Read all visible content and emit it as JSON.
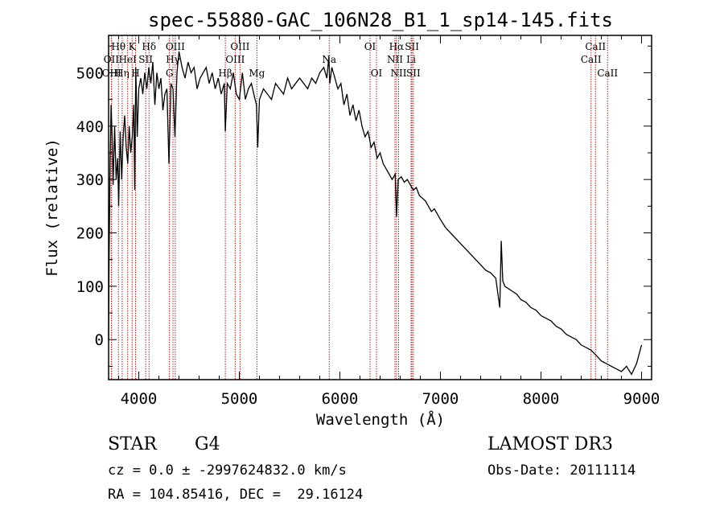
{
  "chart_data": {
    "type": "line",
    "title": "spec-55880-GAC_106N28_B1_1_sp14-145.fits",
    "xlabel": "Wavelength (Å)",
    "ylabel": "Flux (relative)",
    "xlim": [
      3700,
      9100
    ],
    "ylim": [
      -75,
      570
    ],
    "x_ticks": [
      4000,
      5000,
      6000,
      7000,
      8000,
      9000
    ],
    "y_ticks": [
      0,
      100,
      200,
      300,
      400,
      500
    ],
    "series": [
      {
        "name": "flux",
        "color": "#000000",
        "x": [
          3700,
          3705,
          3715,
          3725,
          3735,
          3745,
          3760,
          3775,
          3790,
          3800,
          3815,
          3830,
          3845,
          3860,
          3875,
          3890,
          3905,
          3920,
          3935,
          3950,
          3960,
          3970,
          3985,
          4000,
          4020,
          4040,
          4060,
          4080,
          4100,
          4120,
          4140,
          4160,
          4180,
          4200,
          4220,
          4240,
          4260,
          4280,
          4300,
          4320,
          4340,
          4360,
          4380,
          4400,
          4430,
          4460,
          4490,
          4520,
          4550,
          4580,
          4610,
          4640,
          4670,
          4700,
          4730,
          4760,
          4790,
          4820,
          4850,
          4861,
          4880,
          4910,
          4940,
          4970,
          5000,
          5030,
          5060,
          5090,
          5120,
          5150,
          5170,
          5183,
          5200,
          5240,
          5280,
          5320,
          5360,
          5400,
          5440,
          5480,
          5520,
          5560,
          5600,
          5640,
          5680,
          5720,
          5760,
          5800,
          5840,
          5870,
          5890,
          5900,
          5920,
          5950,
          5980,
          6010,
          6040,
          6070,
          6100,
          6130,
          6160,
          6190,
          6220,
          6250,
          6280,
          6310,
          6340,
          6370,
          6400,
          6430,
          6460,
          6490,
          6520,
          6550,
          6563,
          6580,
          6610,
          6640,
          6670,
          6700,
          6730,
          6760,
          6790,
          6820,
          6850,
          6880,
          6910,
          6940,
          6970,
          7000,
          7050,
          7100,
          7150,
          7200,
          7250,
          7300,
          7350,
          7400,
          7450,
          7500,
          7550,
          7590,
          7605,
          7620,
          7640,
          7680,
          7720,
          7760,
          7800,
          7850,
          7900,
          7950,
          8000,
          8050,
          8100,
          8150,
          8200,
          8250,
          8300,
          8350,
          8400,
          8450,
          8500,
          8550,
          8600,
          8650,
          8700,
          8750,
          8800,
          8850,
          8900,
          8950,
          9000
        ],
        "y": [
          0,
          150,
          330,
          440,
          380,
          290,
          400,
          300,
          340,
          250,
          390,
          300,
          380,
          420,
          360,
          330,
          400,
          350,
          380,
          440,
          280,
          510,
          380,
          470,
          490,
          460,
          500,
          470,
          510,
          480,
          520,
          440,
          500,
          470,
          490,
          430,
          460,
          470,
          330,
          480,
          470,
          380,
          500,
          540,
          510,
          490,
          520,
          500,
          510,
          470,
          490,
          500,
          510,
          480,
          500,
          470,
          490,
          460,
          480,
          390,
          480,
          470,
          500,
          460,
          450,
          500,
          450,
          470,
          480,
          455,
          440,
          360,
          450,
          470,
          460,
          450,
          480,
          470,
          460,
          490,
          470,
          480,
          490,
          480,
          470,
          490,
          480,
          500,
          510,
          490,
          530,
          480,
          510,
          490,
          470,
          480,
          440,
          460,
          420,
          440,
          410,
          430,
          400,
          380,
          390,
          360,
          370,
          340,
          350,
          330,
          320,
          310,
          300,
          310,
          230,
          300,
          305,
          295,
          300,
          290,
          280,
          285,
          270,
          265,
          260,
          250,
          240,
          245,
          235,
          225,
          210,
          200,
          190,
          180,
          170,
          160,
          150,
          140,
          130,
          125,
          115,
          60,
          185,
          110,
          100,
          95,
          90,
          85,
          75,
          70,
          60,
          55,
          45,
          40,
          35,
          25,
          20,
          10,
          5,
          0,
          -10,
          -15,
          -20,
          -30,
          -40,
          -45,
          -50,
          -55,
          -60,
          -50,
          -65,
          -45,
          -10
        ]
      }
    ],
    "spectral_lines": [
      {
        "name": "Hθ",
        "x": 3798,
        "row": 0
      },
      {
        "name": "OII",
        "x": 3727,
        "row": 1
      },
      {
        "name": "OIII",
        "x": 3730,
        "row": 2
      },
      {
        "name": "Hη",
        "x": 3835,
        "row": 2
      },
      {
        "name": "HeI",
        "x": 3889,
        "row": 1
      },
      {
        "name": "K",
        "x": 3934,
        "row": 0
      },
      {
        "name": "H",
        "x": 3968,
        "row": 2
      },
      {
        "name": "SII",
        "x": 4069,
        "row": 1
      },
      {
        "name": "Hδ",
        "x": 4102,
        "row": 0
      },
      {
        "name": "OIII",
        "x": 4363,
        "row": 0
      },
      {
        "name": "Hγ",
        "x": 4340,
        "row": 1
      },
      {
        "name": "G",
        "x": 4305,
        "row": 2
      },
      {
        "name": "OIII",
        "x": 5007,
        "row": 0
      },
      {
        "name": "OIII",
        "x": 4959,
        "row": 1
      },
      {
        "name": "Hβ",
        "x": 4861,
        "row": 2
      },
      {
        "name": "Mg",
        "x": 5175,
        "row": 2
      },
      {
        "name": "Na",
        "x": 5894,
        "row": 1
      },
      {
        "name": "OI",
        "x": 6300,
        "row": 0
      },
      {
        "name": "OI",
        "x": 6364,
        "row": 2
      },
      {
        "name": "Hα",
        "x": 6563,
        "row": 0
      },
      {
        "name": "NII",
        "x": 6548,
        "row": 1
      },
      {
        "name": "NII",
        "x": 6584,
        "row": 2
      },
      {
        "name": "SII",
        "x": 6717,
        "row": 0
      },
      {
        "name": "Li",
        "x": 6708,
        "row": 1
      },
      {
        "name": "SII",
        "x": 6731,
        "row": 2
      },
      {
        "name": "CaII",
        "x": 8542,
        "row": 0
      },
      {
        "name": "CaII",
        "x": 8498,
        "row": 1
      },
      {
        "name": "CaII",
        "x": 8662,
        "row": 2
      }
    ]
  },
  "info": {
    "object_class": "STAR",
    "subclass": "G4",
    "survey": "LAMOST DR3",
    "cz_line": "cz = 0.0 ± -2997624832.0 km/s",
    "obs_date": "Obs-Date: 20111114",
    "coords": "RA = 104.85416, DEC =  29.16124"
  },
  "colors": {
    "line_marker": "#b22222",
    "spectrum": "#000000"
  }
}
